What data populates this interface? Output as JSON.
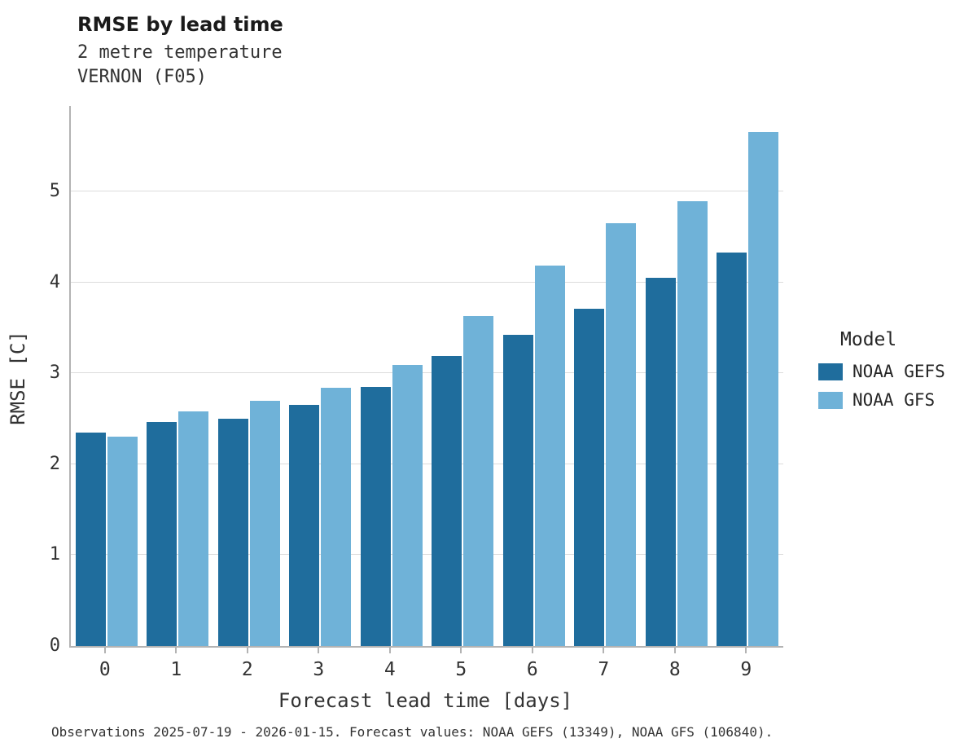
{
  "header": {
    "title": "RMSE by lead time",
    "subtitle1": "2 metre temperature",
    "subtitle2": "VERNON (F05)"
  },
  "footer": {
    "note": "Observations 2025-07-19 - 2026-01-15. Forecast values: NOAA GEFS (13349), NOAA GFS (106840)."
  },
  "legend": {
    "title": "Model",
    "entries": [
      {
        "label": "NOAA GEFS",
        "color": "#1f6d9d"
      },
      {
        "label": "NOAA GFS",
        "color": "#6fb2d8"
      }
    ]
  },
  "chart_data": {
    "type": "bar",
    "title": "RMSE by lead time",
    "subtitle": [
      "2 metre temperature",
      "VERNON (F05)"
    ],
    "categories": [
      "0",
      "1",
      "2",
      "3",
      "4",
      "5",
      "6",
      "7",
      "8",
      "9"
    ],
    "series": [
      {
        "name": "NOAA GEFS",
        "color": "#1f6d9d",
        "values": [
          2.35,
          2.46,
          2.5,
          2.65,
          2.85,
          3.19,
          3.42,
          3.71,
          4.05,
          4.33
        ]
      },
      {
        "name": "NOAA GFS",
        "color": "#6fb2d8",
        "values": [
          2.3,
          2.58,
          2.7,
          2.84,
          3.09,
          3.63,
          4.18,
          4.65,
          4.89,
          5.65
        ]
      }
    ],
    "xlabel": "Forecast lead time [days]",
    "ylabel": "RMSE [C]",
    "ylim": [
      0,
      5.94
    ],
    "yticks": [
      0,
      1,
      2,
      3,
      4,
      5
    ],
    "grid": true,
    "legend_position": "right"
  }
}
